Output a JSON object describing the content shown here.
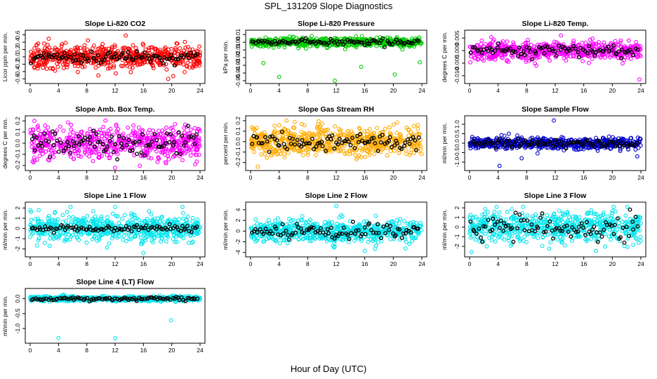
{
  "title": "SPL_131209  Slope Diagnostics",
  "xlabel": "Hour of Day (UTC)",
  "colors": {
    "frame": "#000000",
    "overlay": "#000000"
  },
  "chart_data": [
    {
      "type": "scatter",
      "title": "Slope Li-820 CO2",
      "ylabel": "Licor ppm per min.",
      "color": "#ff0000",
      "xlim": [
        0,
        24
      ],
      "ylim": [
        -0.65,
        0.65
      ],
      "xticks": [
        0,
        4,
        8,
        12,
        16,
        20,
        24
      ],
      "yticks": [
        -0.6,
        -0.4,
        -0.2,
        0.0,
        0.2,
        0.4,
        0.6
      ],
      "ytick_labels": [
        "-0.6",
        "-0.4",
        "-0.2",
        "0.0",
        "0.2",
        "0.4",
        "0.6"
      ],
      "spread": 0.15,
      "overlay_spread": 0.08,
      "outliers": [
        [
          13.5,
          0.58
        ],
        [
          19.5,
          -0.6
        ],
        [
          12.1,
          -0.45
        ]
      ]
    },
    {
      "type": "scatter",
      "title": "Slope Li-820 Pressure",
      "ylabel": "kPa per min.",
      "color": "#00cc00",
      "xlim": [
        0,
        24
      ],
      "ylim": [
        -0.05,
        0.012
      ],
      "xticks": [
        0,
        4,
        8,
        12,
        16,
        20,
        24
      ],
      "yticks": [
        -0.05,
        -0.04,
        -0.03,
        -0.02,
        -0.01,
        0.0,
        0.01
      ],
      "ytick_labels": [
        "-0.05",
        "-0.04",
        "-0.03",
        "-0.02",
        "-0.01",
        "0.00",
        "0.01"
      ],
      "spread": 0.003,
      "overlay_spread": 0.002,
      "outliers": [
        [
          1.8,
          -0.027
        ],
        [
          4.0,
          -0.045
        ],
        [
          11.8,
          -0.05
        ],
        [
          15.5,
          -0.032
        ],
        [
          20.2,
          -0.042
        ],
        [
          23.7,
          -0.026
        ]
      ]
    },
    {
      "type": "scatter",
      "title": "Slope Li-820 Temp.",
      "ylabel": "degrees C per min.",
      "color": "#ff00ff",
      "xlim": [
        0,
        24
      ],
      "ylim": [
        -0.012,
        0.007
      ],
      "xticks": [
        0,
        4,
        8,
        12,
        16,
        20,
        24
      ],
      "yticks": [
        -0.01,
        -0.005,
        0.0,
        0.005
      ],
      "ytick_labels": [
        "-0.010",
        "-0.005",
        "0.000",
        "0.005"
      ],
      "spread": 0.0018,
      "overlay_spread": 0.0012,
      "outliers": [
        [
          12.8,
          0.006
        ],
        [
          23.8,
          -0.0115
        ]
      ]
    },
    {
      "type": "scatter",
      "title": "Slope Amb. Box Temp.",
      "ylabel": "degrees C per min.",
      "color": "#ff00ff",
      "xlim": [
        0,
        24
      ],
      "ylim": [
        -0.22,
        0.22
      ],
      "xticks": [
        0,
        4,
        8,
        12,
        16,
        20,
        24
      ],
      "yticks": [
        -0.2,
        -0.1,
        0.0,
        0.1,
        0.2
      ],
      "ytick_labels": [
        "-0.2",
        "-0.1",
        "0.0",
        "0.1",
        "0.2"
      ],
      "spread": 0.07,
      "overlay_spread": 0.05,
      "outliers": [
        [
          12.0,
          -0.22
        ],
        [
          19.2,
          -0.18
        ],
        [
          0.6,
          0.2
        ]
      ]
    },
    {
      "type": "scatter",
      "title": "Slope Gas Stream RH",
      "ylabel": "percent per min.",
      "color": "#ffaa00",
      "xlim": [
        0,
        24
      ],
      "ylim": [
        -0.25,
        0.22
      ],
      "xticks": [
        0,
        4,
        8,
        12,
        16,
        20,
        24
      ],
      "yticks": [
        -0.2,
        -0.1,
        0.0,
        0.1,
        0.2
      ],
      "ytick_labels": [
        "-0.2",
        "-0.1",
        "0.0",
        "0.1",
        "0.2"
      ],
      "spread": 0.07,
      "overlay_spread": 0.04,
      "outliers": [
        [
          1.0,
          -0.24
        ]
      ]
    },
    {
      "type": "scatter",
      "title": "Slope Sample Flow",
      "ylabel": "ml/min per min.",
      "color": "#0000cc",
      "xlim": [
        0,
        24
      ],
      "ylim": [
        -1.3,
        1.3
      ],
      "xticks": [
        0,
        4,
        8,
        12,
        16,
        20,
        24
      ],
      "yticks": [
        -1.0,
        -0.5,
        0.0,
        0.5,
        1.0
      ],
      "ytick_labels": [
        "-1.0",
        "-0.5",
        "0.0",
        "0.5",
        "1.0"
      ],
      "spread": 0.15,
      "overlay_spread": 0.1,
      "outliers": [
        [
          11.8,
          1.2
        ],
        [
          4.2,
          -1.2
        ],
        [
          5.5,
          0.5
        ],
        [
          7.3,
          -0.8
        ],
        [
          23.5,
          -0.7
        ]
      ]
    },
    {
      "type": "scatter",
      "title": "Slope Line 1 Flow",
      "ylabel": "ml/min per min.",
      "color": "#00e5ee",
      "xlim": [
        0,
        24
      ],
      "ylim": [
        -2.5,
        2.3
      ],
      "xticks": [
        0,
        4,
        8,
        12,
        16,
        20,
        24
      ],
      "yticks": [
        -2,
        -1,
        0,
        1,
        2
      ],
      "ytick_labels": [
        "-2",
        "-1",
        "0",
        "1",
        "2"
      ],
      "spread": 0.6,
      "overlay_spread": 0.15,
      "outliers": [
        [
          12.0,
          2.1
        ],
        [
          16.0,
          -2.4
        ],
        [
          1.2,
          1.8
        ],
        [
          3.5,
          1.6
        ]
      ]
    },
    {
      "type": "scatter",
      "title": "Slope Line 2 Flow",
      "ylabel": "ml/min per min.",
      "color": "#00e5ee",
      "xlim": [
        0,
        24
      ],
      "ylim": [
        -4.3,
        4.9
      ],
      "xticks": [
        0,
        4,
        8,
        12,
        16,
        20,
        24
      ],
      "yticks": [
        -4,
        -2,
        0,
        2,
        4
      ],
      "ytick_labels": [
        "-4",
        "-2",
        "0",
        "2",
        "4"
      ],
      "spread": 1.0,
      "overlay_spread": 0.8,
      "outliers": [
        [
          12.0,
          4.7
        ],
        [
          16.0,
          -3.7
        ]
      ]
    },
    {
      "type": "scatter",
      "title": "Slope Line 3 Flow",
      "ylabel": "ml/min per min.",
      "color": "#00e5ee",
      "xlim": [
        0,
        24
      ],
      "ylim": [
        -2.8,
        2.3
      ],
      "xticks": [
        0,
        4,
        8,
        12,
        16,
        20,
        24
      ],
      "yticks": [
        -2,
        -1,
        0,
        1,
        2
      ],
      "ytick_labels": [
        "-2",
        "-1",
        "0",
        "1",
        "2"
      ],
      "spread": 0.8,
      "overlay_spread": 0.7,
      "outliers": [
        [
          0.3,
          -2.6
        ],
        [
          2.4,
          -2.0
        ],
        [
          7.5,
          2.1
        ],
        [
          16.5,
          1.5
        ]
      ]
    },
    {
      "type": "scatter",
      "title": "Slope Line 4 (LT) Flow",
      "ylabel": "ml/min per min.",
      "color": "#00e5ee",
      "xlim": [
        0,
        24
      ],
      "ylim": [
        -1.4,
        0.25
      ],
      "xticks": [
        0,
        4,
        8,
        12,
        16,
        20,
        24
      ],
      "yticks": [
        -1.0,
        -0.5,
        0.0
      ],
      "ytick_labels": [
        "-1.0",
        "-0.5",
        "0.0"
      ],
      "spread": 0.04,
      "overlay_spread": 0.03,
      "outliers": [
        [
          4.0,
          -1.32
        ],
        [
          12.0,
          -1.33
        ],
        [
          19.9,
          -0.72
        ]
      ]
    }
  ]
}
